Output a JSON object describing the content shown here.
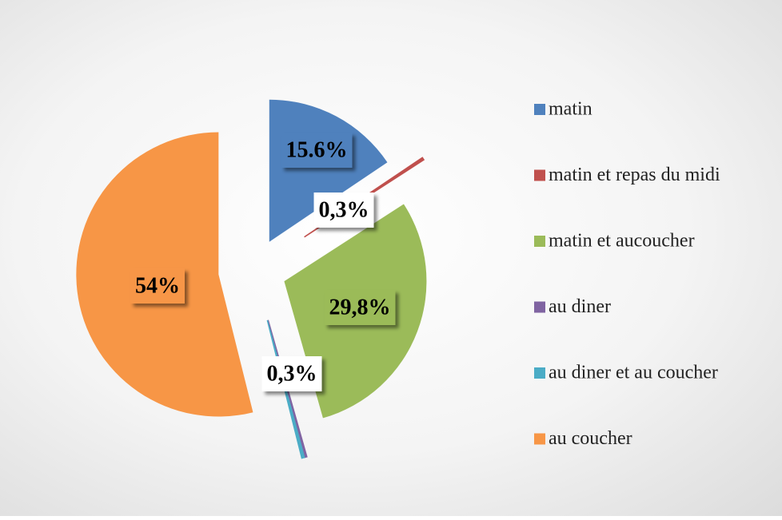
{
  "chart_data": {
    "type": "pie",
    "categories": [
      "matin",
      "matin et repas du midi",
      "matin et aucoucher",
      "au diner",
      "au diner et au coucher",
      "au coucher"
    ],
    "values": [
      15.6,
      0.3,
      29.8,
      0.2,
      0.3,
      54
    ],
    "value_labels": [
      "15.6%",
      "0,3%",
      "29,8%",
      null,
      "0,3%",
      "54%"
    ],
    "colors": [
      "#4f81bd",
      "#c0504d",
      "#9bbb59",
      "#8064a2",
      "#4bacc6",
      "#f79646"
    ],
    "legend": "right"
  }
}
